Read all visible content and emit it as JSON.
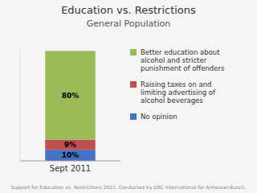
{
  "chart_data": {
    "type": "bar",
    "stacked": true,
    "title": "Education vs. Restrictions",
    "subtitle": "General Population",
    "categories": [
      "Sept 2011"
    ],
    "series": [
      {
        "name": "No opinion",
        "color": "#4472C4",
        "values": [
          10
        ],
        "value_labels": [
          "10%"
        ]
      },
      {
        "name": "Raising taxes on and\nlimiting advertising of\nalcohol beverages",
        "color": "#C0504D",
        "values": [
          9
        ],
        "value_labels": [
          "9%"
        ]
      },
      {
        "name": "Better education about\nalcohol and stricter\npunishment of offenders",
        "color": "#9BBB59",
        "values": [
          80
        ],
        "value_labels": [
          "80%"
        ]
      }
    ],
    "ylim": [
      0,
      100
    ],
    "tick_labels": "x",
    "grid": false,
    "data_labels": true,
    "legend": "right",
    "annotations": [
      "Support for Education vs. Restrictions 2011. Conducted by DRC International for Anheuser-Busch."
    ]
  }
}
